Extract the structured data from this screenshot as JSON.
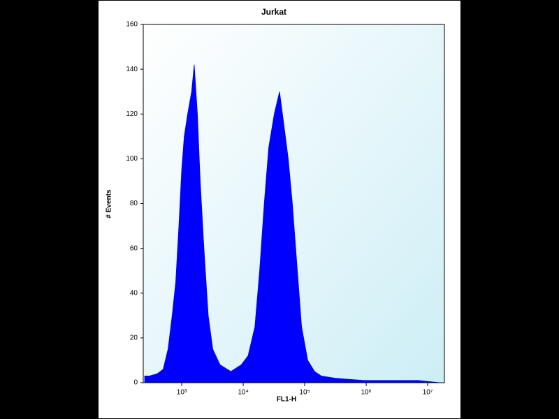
{
  "chart_data": {
    "type": "area",
    "title": "Jurkat",
    "xlabel": "FL1-H",
    "ylabel": "# Events",
    "xscale": "log",
    "color": "#0000ff",
    "background": "#dcf2f7",
    "x": [
      250,
      300,
      400,
      500,
      600,
      700,
      800,
      900,
      1000,
      1100,
      1250,
      1450,
      1600,
      1800,
      2000,
      2300,
      2700,
      3200,
      4200,
      6300,
      9300,
      12000,
      15500,
      18500,
      22000,
      26000,
      32000,
      39000,
      46000,
      54000,
      63000,
      76000,
      89000,
      112000,
      145000,
      186000,
      316000,
      900000,
      2500000,
      7000000,
      16000000
    ],
    "values": [
      3,
      3,
      4,
      6,
      15,
      30,
      45,
      70,
      95,
      110,
      120,
      130,
      142,
      120,
      90,
      60,
      30,
      15,
      8,
      5,
      8,
      12,
      25,
      50,
      80,
      105,
      120,
      130,
      115,
      100,
      80,
      50,
      25,
      10,
      5,
      3,
      2,
      1,
      1,
      1,
      0
    ],
    "xlim": [
      237,
      18700000
    ],
    "xticks": [
      {
        "value": 1000,
        "label": "10³"
      },
      {
        "value": 10000,
        "label": "10⁴"
      },
      {
        "value": 100000,
        "label": "10⁵"
      },
      {
        "value": 1000000,
        "label": "10⁶"
      },
      {
        "value": 10000000,
        "label": "10⁷"
      }
    ],
    "ylim": [
      0,
      160
    ],
    "yticks": [
      0,
      20,
      40,
      60,
      80,
      100,
      120,
      140,
      160
    ]
  }
}
